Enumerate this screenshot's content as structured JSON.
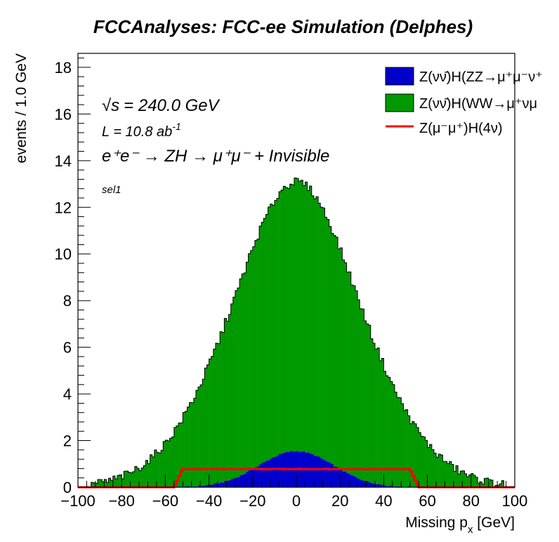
{
  "chart_data": {
    "type": "histogram",
    "title": "FCCAnalyses: FCC-ee Simulation (Delphes)",
    "xlabel": "Missing p",
    "xlabel_sub": "x",
    "xlabel_unit": " [GeV]",
    "ylabel": "events / 1.0 GeV",
    "xlim": [
      -100,
      100
    ],
    "ylim": [
      0,
      18.6
    ],
    "x_ticks": [
      -100,
      -80,
      -60,
      -40,
      -20,
      0,
      20,
      40,
      60,
      80,
      100
    ],
    "y_ticks": [
      0,
      2,
      4,
      6,
      8,
      10,
      12,
      14,
      16,
      18
    ],
    "bin_width": 1.0,
    "stacked": true,
    "annotations": {
      "sqrt_s_symbol": "√s",
      "energy": "= 240.0 GeV",
      "lumi_prefix": "L = 10.8 ab",
      "lumi_sup": "-1",
      "process": "e⁺e⁻ → ZH → μ⁺μ⁻ + Invisible",
      "selection": "sel1"
    },
    "series": [
      {
        "name": "Z(νν̄)H(ZZ→μ⁺μ⁻ν⁺",
        "role": "stack-bottom",
        "color": "#0000cc",
        "shape": {
          "type": "gaussian",
          "peak": 1.55,
          "mean": 0,
          "sigma": 17,
          "support": [
            -70,
            70
          ]
        }
      },
      {
        "name": "Z(νν̄)H(WW→μ⁺νμ",
        "role": "stack-top",
        "color": "#009900",
        "shape": {
          "type": "gaussian",
          "peak": 11.55,
          "mean": 0,
          "sigma": 31.5,
          "support": [
            -95,
            95
          ]
        }
      },
      {
        "name": "Z(μ⁻μ⁺)H(4ν)",
        "role": "overlay-line",
        "color": "#ff0000",
        "shape": {
          "type": "plateau",
          "level": 0.78,
          "edges": [
            -52,
            52
          ],
          "ramp": 4
        }
      }
    ],
    "legend": "top-right"
  }
}
